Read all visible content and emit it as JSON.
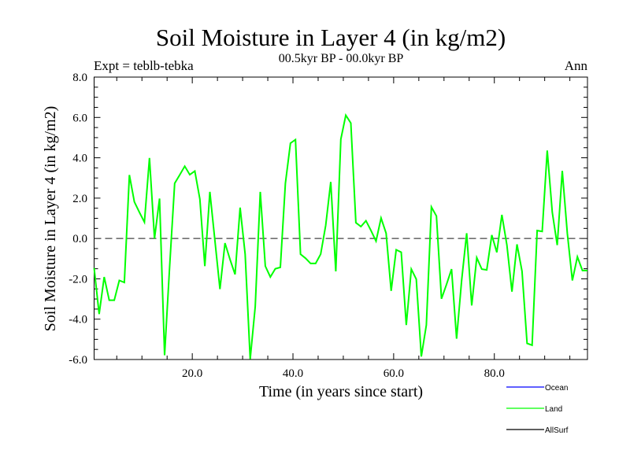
{
  "chart_data": {
    "type": "line",
    "title": "Soil Moisture in Layer 4 (in kg/m2)",
    "subtitle": "00.5kyr BP - 00.0kyr BP",
    "left_label": "Expt = teblb-tebka",
    "right_label": "Ann",
    "xlabel": "Time (in years since start)",
    "ylabel": "Soil Moisture in Layer 4 (in kg/m2)",
    "xlim": [
      0.5,
      98.5
    ],
    "ylim": [
      -6.0,
      8.0
    ],
    "x_ticks": [
      20,
      40,
      60,
      80
    ],
    "x_tick_labels": [
      "20.0",
      "40.0",
      "60.0",
      "80.0"
    ],
    "y_ticks": [
      8,
      6,
      4,
      2,
      0,
      -2,
      -4,
      -6
    ],
    "y_tick_labels": [
      "8.0",
      "6.0",
      "4.0",
      "2.0",
      "0.0",
      "-2.0",
      "-4.0",
      "-6.0"
    ],
    "reference_line": 0.0,
    "x_start": 0.5,
    "x_step": 1,
    "series": [
      {
        "name": "Ocean",
        "color": "#0000ff",
        "values": []
      },
      {
        "name": "Land",
        "color": "#00ff00",
        "values": [
          -1.46,
          -3.75,
          -1.91,
          -3.06,
          -3.06,
          -2.08,
          -2.18,
          3.15,
          1.82,
          1.3,
          0.81,
          3.99,
          0.0,
          1.98,
          -5.79,
          -1.4,
          2.73,
          3.15,
          3.58,
          3.16,
          3.34,
          1.95,
          -1.37,
          2.31,
          -0.1,
          -2.51,
          -0.23,
          -1.04,
          -1.78,
          1.53,
          -0.78,
          -5.98,
          -3.38,
          2.31,
          -1.37,
          -1.91,
          -1.5,
          -1.43,
          2.73,
          4.72,
          4.9,
          -0.78,
          -0.98,
          -1.24,
          -1.24,
          -0.78,
          0.65,
          2.8,
          -1.63,
          4.92,
          6.11,
          5.72,
          0.78,
          0.59,
          0.88,
          0.39,
          -0.13,
          1.01,
          0.26,
          -2.6,
          -0.56,
          -0.68,
          -4.29,
          -1.52,
          -2.02,
          -5.85,
          -4.29,
          1.56,
          1.11,
          -2.99,
          -2.28,
          -1.52,
          -4.97,
          -2.08,
          0.26,
          -3.32,
          -0.95,
          -1.52,
          -1.56,
          0.17,
          -0.69,
          1.17,
          -0.33,
          -2.64,
          -0.29,
          -1.63,
          -5.2,
          -5.29,
          0.39,
          0.35,
          4.36,
          1.3,
          -0.33,
          3.35,
          0.26,
          -2.08,
          -0.91,
          -1.59,
          -1.59
        ]
      },
      {
        "name": "AllSurf",
        "color": "#000000",
        "values": []
      }
    ],
    "legend": "bottom-right",
    "grid": false
  }
}
